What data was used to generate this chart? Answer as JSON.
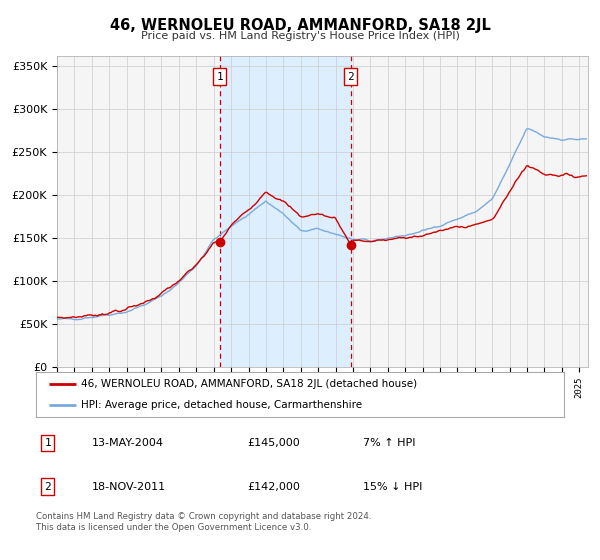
{
  "title": "46, WERNOLEU ROAD, AMMANFORD, SA18 2JL",
  "subtitle": "Price paid vs. HM Land Registry's House Price Index (HPI)",
  "ylabel_ticks": [
    "£0",
    "£50K",
    "£100K",
    "£150K",
    "£200K",
    "£250K",
    "£300K",
    "£350K"
  ],
  "ytick_values": [
    0,
    50000,
    100000,
    150000,
    200000,
    250000,
    300000,
    350000
  ],
  "ylim": [
    0,
    362000
  ],
  "xlim_start": 1995.0,
  "xlim_end": 2025.5,
  "sale1_date": 2004.36,
  "sale1_price": 145000,
  "sale1_label": "1",
  "sale2_date": 2011.88,
  "sale2_price": 142000,
  "sale2_label": "2",
  "sale_marker_color": "#cc0000",
  "hpi_color": "#7aaadd",
  "price_color": "#cc0000",
  "shade_color": "#ddeeff",
  "legend_entries": [
    "46, WERNOLEU ROAD, AMMANFORD, SA18 2JL (detached house)",
    "HPI: Average price, detached house, Carmarthenshire"
  ],
  "table_rows": [
    [
      "1",
      "13-MAY-2004",
      "£145,000",
      "7% ↑ HPI"
    ],
    [
      "2",
      "18-NOV-2011",
      "£142,000",
      "15% ↓ HPI"
    ]
  ],
  "footnote": "Contains HM Land Registry data © Crown copyright and database right 2024.\nThis data is licensed under the Open Government Licence v3.0.",
  "background_color": "#f5f5f5",
  "grid_color": "#cccccc",
  "hpi_ref_years": [
    1995,
    1996,
    1997,
    1998,
    1999,
    2000,
    2001,
    2002,
    2003,
    2004,
    2005,
    2006,
    2007,
    2008,
    2009,
    2010,
    2011,
    2012,
    2013,
    2014,
    2015,
    2016,
    2017,
    2018,
    2019,
    2020,
    2021,
    2022,
    2023,
    2024,
    2025
  ],
  "hpi_ref_vals": [
    55000,
    56000,
    58000,
    61000,
    64000,
    72000,
    82000,
    98000,
    118000,
    148000,
    163000,
    178000,
    193000,
    178000,
    158000,
    160000,
    155000,
    148000,
    146000,
    150000,
    153000,
    158000,
    165000,
    172000,
    180000,
    195000,
    235000,
    278000,
    268000,
    265000,
    265000
  ],
  "price_ref_years": [
    1995,
    1996,
    1997,
    1998,
    1999,
    2000,
    2001,
    2002,
    2003,
    2004,
    2004.36,
    2005,
    2006,
    2007,
    2008,
    2009,
    2010,
    2011,
    2011.88,
    2012,
    2013,
    2014,
    2015,
    2016,
    2017,
    2018,
    2019,
    2020,
    2021,
    2022,
    2023,
    2024,
    2025
  ],
  "price_ref_vals": [
    57000,
    58000,
    60000,
    63000,
    67000,
    75000,
    85000,
    100000,
    118000,
    144000,
    145000,
    165000,
    183000,
    205000,
    192000,
    175000,
    178000,
    173000,
    142000,
    148000,
    146000,
    148000,
    150000,
    153000,
    158000,
    163000,
    166000,
    170000,
    205000,
    235000,
    225000,
    223000,
    222000
  ]
}
